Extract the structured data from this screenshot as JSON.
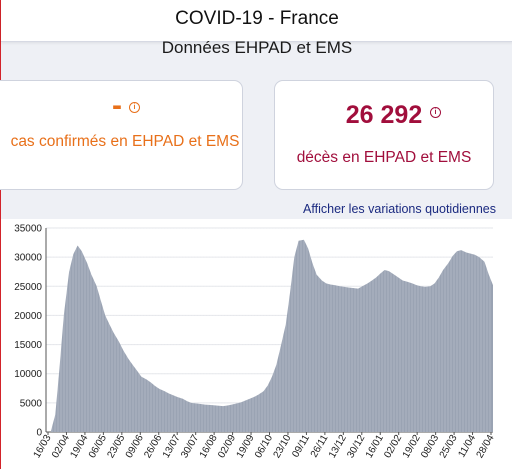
{
  "header": {
    "title": "COVID-19 - France"
  },
  "page": {
    "subtitle": "Données EHPAD et EMS"
  },
  "cards": [
    {
      "value": "-",
      "label": "cas confirmés en EHPAD et EMS",
      "info_icon": "info-circle-icon",
      "color": "#e8701a"
    },
    {
      "value": "26 292",
      "label": "décès en EHPAD et EMS",
      "info_icon": "info-circle-icon",
      "color": "#a10e3c"
    }
  ],
  "links": {
    "variations": "Afficher les variations quotidiennes"
  },
  "chart_data": {
    "type": "area",
    "title": "",
    "xlabel": "",
    "ylabel": "",
    "ylim": [
      0,
      35000
    ],
    "yticks": [
      0,
      5000,
      10000,
      15000,
      20000,
      25000,
      30000,
      35000
    ],
    "xticks": [
      "16/03",
      "02/04",
      "19/04",
      "06/05",
      "23/05",
      "09/06",
      "26/06",
      "13/07",
      "30/07",
      "16/08",
      "02/09",
      "19/09",
      "06/10",
      "23/10",
      "09/11",
      "26/11",
      "13/12",
      "30/12",
      "16/01",
      "02/02",
      "19/02",
      "08/03",
      "25/03",
      "11/04",
      "28/04"
    ],
    "grid": true,
    "color": "#9aa3b3",
    "series": [
      {
        "points": [
          [
            "16/03",
            200
          ],
          [
            "20/03",
            3000
          ],
          [
            "24/03",
            11000
          ],
          [
            "28/03",
            20000
          ],
          [
            "02/04",
            27500
          ],
          [
            "06/04",
            30500
          ],
          [
            "10/04",
            32000
          ],
          [
            "14/04",
            31000
          ],
          [
            "19/04",
            29000
          ],
          [
            "23/04",
            27000
          ],
          [
            "28/04",
            25000
          ],
          [
            "02/05",
            22500
          ],
          [
            "06/05",
            20000
          ],
          [
            "10/05",
            18500
          ],
          [
            "14/05",
            17000
          ],
          [
            "19/05",
            15500
          ],
          [
            "23/05",
            14000
          ],
          [
            "28/05",
            12500
          ],
          [
            "01/06",
            11500
          ],
          [
            "05/06",
            10500
          ],
          [
            "09/06",
            9500
          ],
          [
            "14/06",
            9000
          ],
          [
            "18/06",
            8500
          ],
          [
            "22/06",
            7900
          ],
          [
            "26/06",
            7400
          ],
          [
            "01/07",
            7000
          ],
          [
            "05/07",
            6600
          ],
          [
            "09/07",
            6300
          ],
          [
            "13/07",
            6000
          ],
          [
            "18/07",
            5700
          ],
          [
            "22/07",
            5300
          ],
          [
            "26/07",
            5000
          ],
          [
            "30/07",
            4900
          ],
          [
            "04/08",
            4800
          ],
          [
            "08/08",
            4700
          ],
          [
            "12/08",
            4650
          ],
          [
            "16/08",
            4600
          ],
          [
            "21/08",
            4500
          ],
          [
            "25/08",
            4450
          ],
          [
            "29/08",
            4550
          ],
          [
            "02/09",
            4700
          ],
          [
            "07/09",
            4900
          ],
          [
            "11/09",
            5100
          ],
          [
            "15/09",
            5400
          ],
          [
            "19/09",
            5700
          ],
          [
            "23/09",
            6000
          ],
          [
            "27/09",
            6400
          ],
          [
            "02/10",
            7000
          ],
          [
            "06/10",
            8000
          ],
          [
            "10/10",
            9500
          ],
          [
            "14/10",
            11500
          ],
          [
            "18/10",
            14500
          ],
          [
            "23/10",
            18500
          ],
          [
            "27/10",
            24000
          ],
          [
            "31/10",
            30000
          ],
          [
            "04/11",
            32800
          ],
          [
            "09/11",
            33000
          ],
          [
            "13/11",
            31500
          ],
          [
            "17/11",
            29000
          ],
          [
            "21/11",
            27000
          ],
          [
            "26/11",
            26000
          ],
          [
            "30/11",
            25500
          ],
          [
            "04/12",
            25300
          ],
          [
            "08/12",
            25200
          ],
          [
            "13/12",
            25000
          ],
          [
            "17/12",
            24900
          ],
          [
            "21/12",
            24800
          ],
          [
            "25/12",
            24700
          ],
          [
            "30/12",
            24600
          ],
          [
            "03/01",
            25000
          ],
          [
            "08/01",
            25500
          ],
          [
            "12/01",
            26000
          ],
          [
            "16/01",
            26500
          ],
          [
            "20/01",
            27200
          ],
          [
            "24/01",
            27800
          ],
          [
            "28/01",
            27600
          ],
          [
            "02/02",
            27000
          ],
          [
            "06/02",
            26500
          ],
          [
            "10/02",
            26000
          ],
          [
            "14/02",
            25800
          ],
          [
            "19/02",
            25500
          ],
          [
            "23/02",
            25200
          ],
          [
            "27/02",
            25000
          ],
          [
            "03/03",
            24900
          ],
          [
            "08/03",
            25000
          ],
          [
            "12/03",
            25500
          ],
          [
            "16/03",
            26500
          ],
          [
            "20/03",
            27800
          ],
          [
            "25/03",
            29000
          ],
          [
            "29/03",
            30200
          ],
          [
            "02/04",
            31000
          ],
          [
            "06/04",
            31200
          ],
          [
            "11/04",
            30800
          ],
          [
            "15/04",
            30600
          ],
          [
            "19/04",
            30400
          ],
          [
            "23/04",
            30000
          ],
          [
            "28/04",
            29200
          ],
          [
            "02/05",
            27000
          ],
          [
            "06/05",
            25200
          ]
        ]
      }
    ]
  }
}
